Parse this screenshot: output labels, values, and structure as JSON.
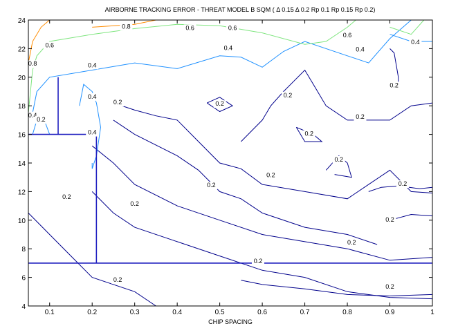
{
  "chart_data": {
    "type": "contour",
    "title": "AIRBORNE TRACKING ERROR - THREAT MODEL B SQM ( Δ 0.15 Δ 0.2 Rp 0.1 Rp 0.15 Rp 0.2)",
    "xlabel": "CHIP SPACING",
    "ylabel": "",
    "xlim": [
      0.05,
      1.0
    ],
    "ylim": [
      4,
      24
    ],
    "xticks": [
      "0.1",
      "0.2",
      "0.3",
      "0.4",
      "0.5",
      "0.6",
      "0.7",
      "0.8",
      "0.9",
      "1"
    ],
    "yticks": [
      "4",
      "6",
      "8",
      "10",
      "12",
      "14",
      "16",
      "18",
      "20",
      "22",
      "24"
    ],
    "xtick_values": [
      0.1,
      0.2,
      0.3,
      0.4,
      0.5,
      0.6,
      0.7,
      0.8,
      0.9,
      1.0
    ],
    "ytick_values": [
      4,
      6,
      8,
      10,
      12,
      14,
      16,
      18,
      20,
      22,
      24
    ],
    "grid": false,
    "colors": {
      "0.2": "#00008b",
      "0.4": "#1e90ff",
      "0.6": "#7ee57e",
      "0.8": "#ff8c00",
      "reference": "#2020c0"
    },
    "contours": [
      {
        "level": "0.2",
        "points": [
          [
            0.05,
            10.5
          ],
          [
            0.1,
            9.0
          ],
          [
            0.15,
            7.5
          ],
          [
            0.2,
            6.0
          ],
          [
            0.3,
            5.0
          ],
          [
            0.35,
            4.0
          ]
        ]
      },
      {
        "level": "0.2",
        "points": [
          [
            0.2,
            12.0
          ],
          [
            0.25,
            10.5
          ],
          [
            0.3,
            9.5
          ],
          [
            0.4,
            8.5
          ],
          [
            0.5,
            7.5
          ],
          [
            0.6,
            6.5
          ],
          [
            0.7,
            6.0
          ],
          [
            0.8,
            5.0
          ],
          [
            0.9,
            4.6
          ],
          [
            1.0,
            4.5
          ]
        ]
      },
      {
        "level": "0.2",
        "points": [
          [
            0.2,
            15.2
          ],
          [
            0.25,
            14.0
          ],
          [
            0.3,
            12.5
          ],
          [
            0.4,
            11.0
          ],
          [
            0.5,
            10.0
          ],
          [
            0.6,
            9.0
          ],
          [
            0.7,
            8.5
          ],
          [
            0.8,
            8.0
          ],
          [
            0.9,
            7.2
          ],
          [
            1.0,
            7.4
          ]
        ]
      },
      {
        "level": "0.2",
        "points": [
          [
            0.25,
            17.0
          ],
          [
            0.3,
            16.0
          ],
          [
            0.4,
            14.5
          ],
          [
            0.45,
            13.5
          ],
          [
            0.5,
            12.0
          ],
          [
            0.55,
            11.5
          ],
          [
            0.6,
            10.5
          ],
          [
            0.7,
            9.5
          ],
          [
            0.8,
            9.0
          ],
          [
            0.87,
            8.3
          ]
        ]
      },
      {
        "level": "0.2",
        "points": [
          [
            0.55,
            5.8
          ],
          [
            0.6,
            5.5
          ],
          [
            0.7,
            5.2
          ],
          [
            0.8,
            4.8
          ],
          [
            0.9,
            4.7
          ],
          [
            1.0,
            4.8
          ]
        ]
      },
      {
        "level": "0.2",
        "points": [
          [
            0.25,
            18.2
          ],
          [
            0.3,
            17.7
          ],
          [
            0.35,
            17.3
          ],
          [
            0.4,
            17.0
          ],
          [
            0.45,
            15.5
          ],
          [
            0.5,
            14.0
          ],
          [
            0.55,
            13.6
          ],
          [
            0.6,
            12.5
          ],
          [
            0.7,
            12.0
          ],
          [
            0.8,
            11.5
          ],
          [
            0.85,
            12.5
          ],
          [
            0.9,
            13.5
          ],
          [
            0.95,
            12.0
          ],
          [
            1.0,
            11.9
          ]
        ]
      },
      {
        "level": "0.2",
        "points": [
          [
            0.85,
            12.0
          ],
          [
            0.88,
            12.3
          ],
          [
            0.92,
            12.4
          ],
          [
            0.97,
            12.2
          ],
          [
            1.0,
            12.3
          ]
        ]
      },
      {
        "level": "0.2",
        "points": [
          [
            0.9,
            10.0
          ],
          [
            0.95,
            10.4
          ],
          [
            1.0,
            10.3
          ]
        ]
      },
      {
        "level": "0.2",
        "points": [
          [
            0.55,
            15.5
          ],
          [
            0.6,
            17.0
          ],
          [
            0.62,
            18.0
          ],
          [
            0.65,
            19.0
          ],
          [
            0.7,
            20.5
          ],
          [
            0.72,
            19.5
          ],
          [
            0.75,
            18.0
          ],
          [
            0.8,
            17.0
          ],
          [
            0.85,
            17.0
          ],
          [
            0.9,
            17.0
          ],
          [
            0.95,
            18.0
          ],
          [
            1.0,
            18.2
          ]
        ]
      },
      {
        "level": "0.2",
        "points": [
          [
            0.47,
            18.2
          ],
          [
            0.5,
            18.6
          ],
          [
            0.53,
            18.0
          ],
          [
            0.5,
            17.6
          ],
          [
            0.47,
            18.2
          ]
        ]
      },
      {
        "level": "0.2",
        "points": [
          [
            0.68,
            16.5
          ],
          [
            0.72,
            16.0
          ],
          [
            0.74,
            15.5
          ],
          [
            0.7,
            15.5
          ],
          [
            0.68,
            16.5
          ]
        ]
      },
      {
        "level": "0.2",
        "points": [
          [
            0.75,
            13.5
          ],
          [
            0.78,
            14.5
          ],
          [
            0.8,
            14.0
          ],
          [
            0.81,
            13.0
          ],
          [
            0.77,
            13.2
          ]
        ]
      },
      {
        "level": "0.2",
        "points": [
          [
            0.9,
            22.0
          ],
          [
            0.91,
            21.7
          ],
          [
            0.92,
            20.0
          ],
          [
            0.92,
            19.5
          ]
        ]
      },
      {
        "level": "0.4",
        "points": [
          [
            0.06,
            17.5
          ],
          [
            0.07,
            19.0
          ],
          [
            0.1,
            20.0
          ],
          [
            0.2,
            20.5
          ],
          [
            0.3,
            21.0
          ],
          [
            0.4,
            20.6
          ],
          [
            0.5,
            21.5
          ],
          [
            0.55,
            21.4
          ],
          [
            0.6,
            20.7
          ],
          [
            0.65,
            21.8
          ],
          [
            0.7,
            22.5
          ],
          [
            0.8,
            21.5
          ],
          [
            0.85,
            21.0
          ],
          [
            0.9,
            22.7
          ],
          [
            0.95,
            24.0
          ]
        ]
      },
      {
        "level": "0.4",
        "points": [
          [
            0.06,
            16.0
          ],
          [
            0.07,
            17.0
          ],
          [
            0.09,
            16.8
          ],
          [
            0.1,
            16.0
          ]
        ]
      },
      {
        "level": "0.4",
        "points": [
          [
            0.17,
            18.0
          ],
          [
            0.18,
            19.5
          ],
          [
            0.2,
            19.0
          ],
          [
            0.21,
            18.2
          ],
          [
            0.22,
            16.5
          ],
          [
            0.21,
            14.5
          ],
          [
            0.2,
            13.6
          ],
          [
            0.2,
            14.0
          ]
        ]
      },
      {
        "level": "0.4",
        "points": [
          [
            0.9,
            23.0
          ],
          [
            0.95,
            22.5
          ],
          [
            1.0,
            22.5
          ]
        ]
      },
      {
        "level": "0.6",
        "points": [
          [
            0.05,
            17.5
          ],
          [
            0.06,
            20.5
          ],
          [
            0.07,
            21.5
          ],
          [
            0.1,
            22.5
          ],
          [
            0.2,
            23.0
          ],
          [
            0.3,
            23.4
          ],
          [
            0.4,
            23.7
          ],
          [
            0.5,
            23.6
          ],
          [
            0.6,
            23.1
          ],
          [
            0.7,
            22.3
          ],
          [
            0.75,
            22.5
          ],
          [
            0.8,
            23.5
          ],
          [
            0.82,
            24.0
          ]
        ]
      },
      {
        "level": "0.6",
        "points": [
          [
            0.9,
            23.5
          ],
          [
            0.95,
            23.0
          ],
          [
            0.98,
            24.0
          ]
        ]
      },
      {
        "level": "0.8",
        "points": [
          [
            0.05,
            21.0
          ],
          [
            0.06,
            22.5
          ],
          [
            0.08,
            23.5
          ],
          [
            0.1,
            24.0
          ]
        ]
      },
      {
        "level": "0.8",
        "points": [
          [
            0.2,
            23.5
          ],
          [
            0.3,
            23.7
          ],
          [
            0.35,
            24.0
          ]
        ]
      }
    ],
    "contour_labels": [
      {
        "text": "0.8",
        "x": 0.28,
        "y": 23.4
      },
      {
        "text": "0.6",
        "x": 0.43,
        "y": 23.3
      },
      {
        "text": "0.6",
        "x": 0.53,
        "y": 23.3
      },
      {
        "text": "0.6",
        "x": 0.1,
        "y": 22.1
      },
      {
        "text": "0.4",
        "x": 0.52,
        "y": 21.9
      },
      {
        "text": "0.4",
        "x": 0.2,
        "y": 20.7
      },
      {
        "text": "0.6",
        "x": 0.8,
        "y": 22.8
      },
      {
        "text": "0.4",
        "x": 0.83,
        "y": 21.8
      },
      {
        "text": "0.4",
        "x": 0.96,
        "y": 22.3
      },
      {
        "text": "0.2",
        "x": 0.66,
        "y": 18.6
      },
      {
        "text": "0.2",
        "x": 0.5,
        "y": 18.0
      },
      {
        "text": "0.2",
        "x": 0.26,
        "y": 18.1
      },
      {
        "text": "0.2",
        "x": 0.91,
        "y": 19.3
      },
      {
        "text": "0.2",
        "x": 0.83,
        "y": 17.1
      },
      {
        "text": "0.2",
        "x": 0.71,
        "y": 15.9
      },
      {
        "text": "0.2",
        "x": 0.78,
        "y": 14.1
      },
      {
        "text": "0.2",
        "x": 0.62,
        "y": 13.0
      },
      {
        "text": "0.2",
        "x": 0.93,
        "y": 12.4
      },
      {
        "text": "0.2",
        "x": 0.48,
        "y": 12.3
      },
      {
        "text": "0.2",
        "x": 0.3,
        "y": 11.0
      },
      {
        "text": "0.2",
        "x": 0.14,
        "y": 11.5
      },
      {
        "text": "0.2",
        "x": 0.9,
        "y": 9.9
      },
      {
        "text": "0.2",
        "x": 0.81,
        "y": 8.3
      },
      {
        "text": "0.2",
        "x": 0.59,
        "y": 7.0
      },
      {
        "text": "0.2",
        "x": 0.26,
        "y": 5.7
      },
      {
        "text": "0.2",
        "x": 0.9,
        "y": 5.2
      },
      {
        "text": "0.4",
        "x": 0.2,
        "y": 18.5
      },
      {
        "text": "0.4",
        "x": 0.2,
        "y": 16.0
      },
      {
        "text": "0.4",
        "x": 0.06,
        "y": 17.2
      },
      {
        "text": "0.2",
        "x": 0.08,
        "y": 16.9
      },
      {
        "text": "0.8",
        "x": 0.06,
        "y": 20.8
      }
    ],
    "reference_lines": [
      {
        "type": "h",
        "y": 7.0
      },
      {
        "type": "h",
        "y": 16.0,
        "x0": 0.05,
        "x1": 0.21
      },
      {
        "type": "v",
        "x": 0.21,
        "y0": 7.0,
        "y1": 16.0
      },
      {
        "type": "v",
        "x": 0.12,
        "y0": 16.0,
        "y1": 20.0
      }
    ]
  }
}
